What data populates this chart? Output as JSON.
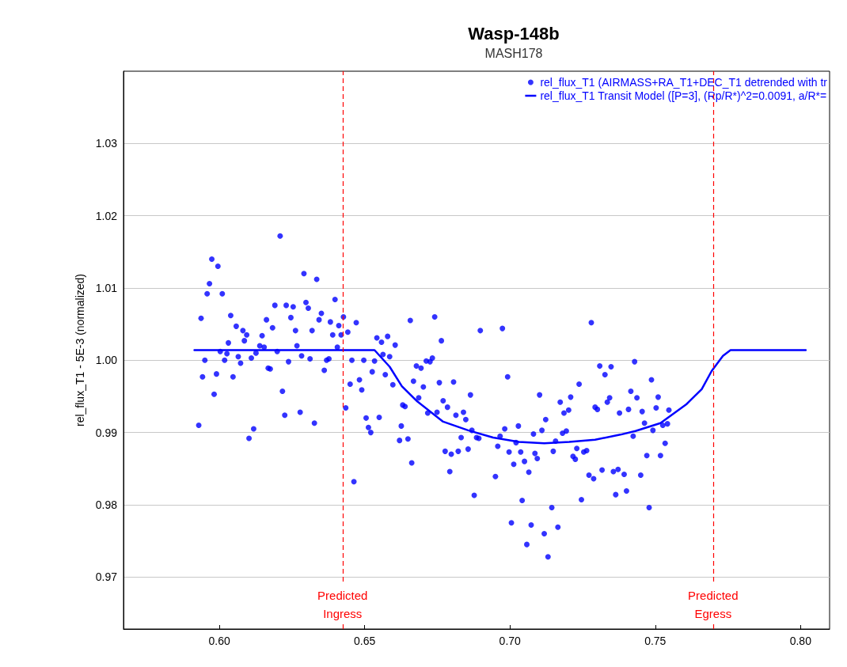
{
  "chart_data": {
    "type": "scatter",
    "title": "Wasp-148b",
    "subtitle": "MASH178",
    "ylabel": "rel_flux_T1 - 5E-3 (normalized)",
    "xlim": [
      0.567,
      0.81
    ],
    "xticks": [
      {
        "value": 0.6,
        "label": "0.60"
      },
      {
        "value": 0.65,
        "label": "0.65"
      },
      {
        "value": 0.7,
        "label": "0.70"
      },
      {
        "value": 0.75,
        "label": "0.75"
      },
      {
        "value": 0.8,
        "label": "0.80"
      }
    ],
    "ylim": [
      0.9628,
      1.04
    ],
    "yticks": [
      0.97,
      0.98,
      0.99,
      {
        "value": 1.0,
        "label": "1.00"
      },
      1.01,
      1.02,
      1.03
    ],
    "grid": "y",
    "legend": "top right",
    "marker": "circle",
    "ref_lines": [
      {
        "axis": "x",
        "value": 0.6424,
        "label": "Predicted\nIngress",
        "color": "#ff0000",
        "line_style": "dashed"
      },
      {
        "axis": "x",
        "value": 0.7699,
        "label": "Predicted\nEgress",
        "color": "#ff0000",
        "line_style": "dashed"
      }
    ],
    "series": [
      {
        "name": "rel_flux_T1 (AIRMASS+RA_T1+DEC_T1 detrended with tr",
        "color": "#0000ff",
        "x": [
          0.6209,
          0.5974,
          0.5995,
          0.5966,
          0.5958,
          0.601,
          0.6291,
          0.6335,
          0.5937,
          0.6039,
          0.6058,
          0.6081,
          0.6094,
          0.6086,
          0.6031,
          0.6162,
          0.6183,
          0.6191,
          0.623,
          0.6254,
          0.6246,
          0.6262,
          0.6298,
          0.6306,
          0.6343,
          0.6351,
          0.6319,
          0.6382,
          0.6398,
          0.6411,
          0.6427,
          0.639,
          0.6419,
          0.6442,
          0.6471,
          0.6147,
          0.6139,
          0.6154,
          0.6003,
          0.6026,
          0.595,
          0.6018,
          0.6065,
          0.6073,
          0.611,
          0.6126,
          0.6199,
          0.6267,
          0.6283,
          0.6238,
          0.6312,
          0.6369,
          0.6377,
          0.6406,
          0.6361,
          0.6456,
          0.6497,
          0.6534,
          0.6542,
          0.6558,
          0.6579,
          0.6605,
          0.6563,
          0.6586,
          0.6526,
          0.6571,
          0.6597,
          0.6657,
          0.5942,
          0.599,
          0.6047,
          0.5982,
          0.6168,
          0.6175,
          0.6217,
          0.645,
          0.6482,
          0.649,
          0.6435,
          0.6225,
          0.6278,
          0.6327,
          0.6505,
          0.6513,
          0.6521,
          0.655,
          0.5929,
          0.6118,
          0.6102,
          0.6463,
          0.6626,
          0.662,
          0.6649,
          0.6662,
          0.6631,
          0.6639,
          0.6668,
          0.6741,
          0.6764,
          0.6898,
          0.6974,
          0.728,
          0.6678,
          0.6694,
          0.6712,
          0.6725,
          0.6733,
          0.6702,
          0.6686,
          0.6757,
          0.6806,
          0.677,
          0.6785,
          0.6749,
          0.6717,
          0.6814,
          0.684,
          0.6848,
          0.6864,
          0.6992,
          0.6777,
          0.6798,
          0.6822,
          0.6793,
          0.6832,
          0.6856,
          0.6869,
          0.6885,
          0.6893,
          0.6877,
          0.6958,
          0.695,
          0.6982,
          0.6966,
          0.6997,
          0.7013,
          0.7021,
          0.7029,
          0.7037,
          0.705,
          0.7065,
          0.7042,
          0.7005,
          0.7073,
          0.7058,
          0.7081,
          0.7086,
          0.7094,
          0.711,
          0.7123,
          0.7102,
          0.7144,
          0.7118,
          0.7131,
          0.7165,
          0.7149,
          0.7157,
          0.7173,
          0.7186,
          0.7202,
          0.7181,
          0.7194,
          0.7209,
          0.7238,
          0.723,
          0.7217,
          0.7225,
          0.7254,
          0.7264,
          0.7246,
          0.7272,
          0.7288,
          0.7309,
          0.7327,
          0.7348,
          0.7293,
          0.7301,
          0.7335,
          0.7343,
          0.7377,
          0.7317,
          0.7356,
          0.7372,
          0.7364,
          0.7429,
          0.7416,
          0.7437,
          0.7408,
          0.7455,
          0.7487,
          0.751,
          0.7503,
          0.7547,
          0.7463,
          0.7492,
          0.7526,
          0.7542,
          0.7424,
          0.7534,
          0.7471,
          0.7518,
          0.745,
          0.7401,
          0.7479,
          0.7393
        ],
        "values": [
          1.0172,
          1.014,
          1.013,
          1.0106,
          1.0092,
          1.0092,
          1.012,
          1.0112,
          1.0058,
          1.0062,
          1.0047,
          1.0041,
          1.0035,
          1.0027,
          1.0024,
          1.0056,
          1.0045,
          1.0076,
          1.0076,
          1.0074,
          1.0059,
          1.0041,
          1.008,
          1.0072,
          1.0056,
          1.0065,
          1.0041,
          1.0053,
          1.0084,
          1.0048,
          1.006,
          1.0035,
          1.0035,
          1.0039,
          1.0052,
          1.0034,
          1.002,
          1.0018,
          1.0012,
          1.0009,
          1.0,
          1.0,
          1.0005,
          0.9996,
          1.0003,
          1.001,
          1.0012,
          1.002,
          1.0006,
          0.9998,
          1.0002,
          1.0,
          1.0002,
          1.0018,
          0.9986,
          1.0,
          1.0,
          0.9999,
          1.0031,
          1.0025,
          1.0033,
          1.0021,
          1.0008,
          1.0005,
          0.9984,
          0.998,
          0.9966,
          1.0055,
          0.9977,
          0.9981,
          0.9977,
          0.9953,
          0.9989,
          0.9988,
          0.9957,
          0.9967,
          0.9973,
          0.9959,
          0.9934,
          0.9924,
          0.9928,
          0.9913,
          0.992,
          0.9907,
          0.99,
          0.9921,
          0.991,
          0.9905,
          0.9892,
          0.9832,
          0.9909,
          0.9889,
          0.9891,
          0.9858,
          0.9938,
          0.9936,
          0.9971,
          1.006,
          1.0027,
          1.0041,
          1.0044,
          1.0052,
          0.9992,
          0.9989,
          0.9999,
          0.9998,
          1.0003,
          0.9963,
          0.9948,
          0.9969,
          0.997,
          0.9944,
          0.9935,
          0.9928,
          0.9927,
          0.9924,
          0.9928,
          0.9918,
          0.9952,
          0.9977,
          0.9874,
          0.987,
          0.9874,
          0.9846,
          0.9893,
          0.9877,
          0.9903,
          0.9893,
          0.9892,
          0.9813,
          0.9881,
          0.9839,
          0.9905,
          0.9895,
          0.9873,
          0.9856,
          0.9886,
          0.9909,
          0.9873,
          0.986,
          0.9845,
          0.9806,
          0.9775,
          0.9772,
          0.9745,
          0.9898,
          0.9871,
          0.9864,
          0.9903,
          0.9918,
          0.9952,
          0.9796,
          0.976,
          0.9728,
          0.9769,
          0.9874,
          0.9888,
          0.9942,
          0.9927,
          0.9931,
          0.9899,
          0.9902,
          0.9949,
          0.9967,
          0.9878,
          0.9867,
          0.9863,
          0.9873,
          0.9875,
          0.9807,
          0.9841,
          0.9836,
          0.9992,
          0.998,
          0.9991,
          0.9935,
          0.9932,
          0.9942,
          0.9948,
          0.9927,
          0.9848,
          0.9846,
          0.9849,
          0.9814,
          0.9998,
          0.9957,
          0.9948,
          0.9932,
          0.9929,
          0.9973,
          0.9949,
          0.9934,
          0.9931,
          0.9913,
          0.9903,
          0.991,
          0.9912,
          0.9895,
          0.9885,
          0.9868,
          0.9868,
          0.9841,
          0.9819,
          0.9796,
          0.9842
        ]
      },
      {
        "name": "rel_flux_T1 Transit Model ([P=3], (Rp/R*)^2=0.0091, a/R*=",
        "type": "line",
        "color": "#0000ff",
        "marker": "none",
        "x": [
          0.5914,
          0.6534,
          0.6586,
          0.6628,
          0.6681,
          0.677,
          0.6856,
          0.6942,
          0.7031,
          0.7118,
          0.7204,
          0.7293,
          0.738,
          0.7432,
          0.7518,
          0.7607,
          0.766,
          0.7694,
          0.7733,
          0.7759,
          0.8018
        ],
        "values": [
          1.0014,
          1.0014,
          0.9991,
          0.9964,
          0.9943,
          0.9915,
          0.9903,
          0.9893,
          0.9887,
          0.9885,
          0.9887,
          0.989,
          0.9897,
          0.9902,
          0.9913,
          0.9939,
          0.996,
          0.9985,
          1.0006,
          1.0014,
          1.0014
        ]
      }
    ]
  }
}
